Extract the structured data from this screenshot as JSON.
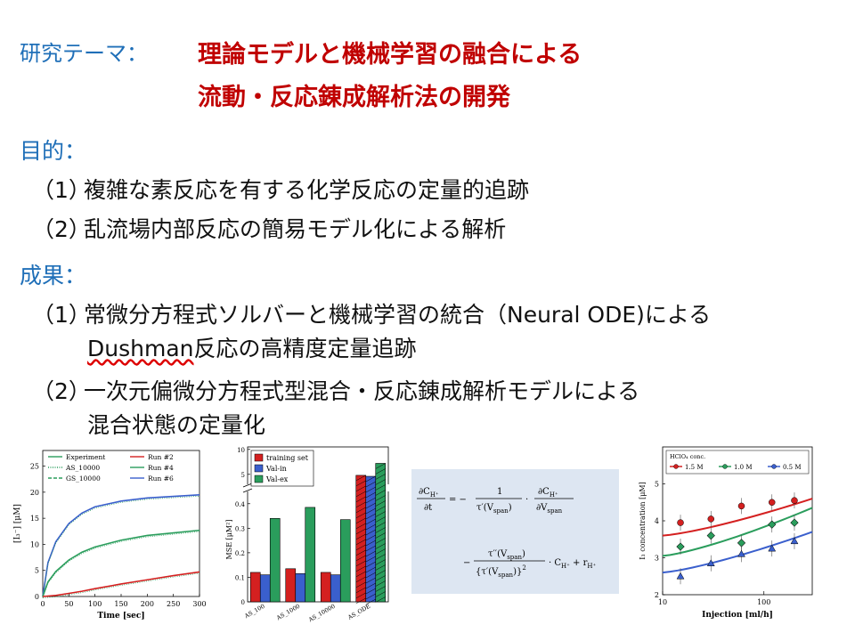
{
  "theme": {
    "label": "研究テーマ：",
    "title_line1": "理論モデルと機械学習の融合による",
    "title_line2": "流動・反応錬成解析法の開発"
  },
  "purpose": {
    "heading": "目的：",
    "items": [
      {
        "num": "（1）",
        "text": "複雑な素反応を有する化学反応の定量的追跡"
      },
      {
        "num": "（2）",
        "text": "乱流場内部反応の簡易モデル化による解析"
      }
    ]
  },
  "results": {
    "heading": "成果：",
    "items": [
      {
        "num": "（1）",
        "line1": "常微分方程式ソルバーと機械学習の統合（Neural ODE)による",
        "line2_u": "Dushman",
        "line2_rest": "反応の高精度定量追跡"
      },
      {
        "num": "（2）",
        "line1": "一次元偏微分方程式型混合・反応錬成解析モデルによる",
        "line2": "混合状態の定量化"
      }
    ]
  },
  "equation": {
    "lhs_num": "∂C",
    "lhs_sub": "H⁺",
    "lhs_den": "∂t",
    "eq1": "= −",
    "frac1_num": "1",
    "frac1_den": "τ′(V",
    "frac1_den_sub": "span",
    "frac1_den_end": ")",
    "dot": "·",
    "frac2_num": "∂C",
    "frac2_num_sub": "H⁺",
    "frac2_den": "∂V",
    "frac2_den_sub": "span",
    "minus": "−",
    "frac3_num": "τ′′(V",
    "frac3_num_sub": "span",
    "frac3_num_end": ")",
    "frac3_den": "{τ′(V",
    "frac3_den_sub": "span",
    "frac3_den_end": ")}",
    "frac3_den_sup": "2",
    "tail": "· C",
    "tail_sub": "H⁺",
    "tail_plus": " + r",
    "tail_sub2": "H⁺"
  },
  "chart_data": [
    {
      "type": "line",
      "xlabel": "Time [sec]",
      "ylabel": "[I₃⁻] [μM]",
      "xlim": [
        0,
        300
      ],
      "ylim": [
        0,
        28
      ],
      "xticks": [
        "0",
        "50",
        "100",
        "150",
        "200",
        "250",
        "300"
      ],
      "yticks": [
        "0",
        "5",
        "10",
        "15",
        "20",
        "25"
      ],
      "legend": [
        "Experiment",
        "AS_10000",
        "GS_10000",
        "Run #2",
        "Run #4",
        "Run #6"
      ],
      "series": [
        {
          "name": "Run #6",
          "color": "#3a5fcd",
          "x": [
            0,
            10,
            25,
            50,
            75,
            100,
            150,
            200,
            250,
            300
          ],
          "values": [
            0,
            6.5,
            10.5,
            14,
            16,
            17.2,
            18.3,
            18.9,
            19.2,
            19.5
          ]
        },
        {
          "name": "Run #4",
          "color": "#2a9d5c",
          "x": [
            0,
            10,
            25,
            50,
            75,
            100,
            150,
            200,
            250,
            300
          ],
          "values": [
            0,
            2.8,
            4.8,
            7,
            8.5,
            9.5,
            10.8,
            11.7,
            12.2,
            12.7
          ]
        },
        {
          "name": "Run #2",
          "color": "#d42020",
          "x": [
            0,
            25,
            50,
            75,
            100,
            150,
            200,
            250,
            300
          ],
          "values": [
            0,
            0.2,
            0.6,
            1.0,
            1.5,
            2.4,
            3.2,
            4.0,
            4.7
          ]
        }
      ]
    },
    {
      "type": "bar",
      "ylabel": "MSE [μM²]",
      "categories": [
        "AS_100",
        "AS_1000",
        "AS_10000",
        "AS_ODE"
      ],
      "legend": [
        "training set",
        "Val-in",
        "Val-ex"
      ],
      "yticks_lower": [
        "0",
        "0.1",
        "0.2",
        "0.3",
        "0.4"
      ],
      "yticks_upper": [
        "5",
        "10"
      ],
      "series": [
        {
          "name": "training set",
          "color": "#d42020",
          "values": [
            0.12,
            0.135,
            0.12,
            4.8
          ]
        },
        {
          "name": "Val-in",
          "color": "#3a5fcd",
          "values": [
            0.11,
            0.115,
            0.11,
            4.6
          ]
        },
        {
          "name": "Val-ex",
          "color": "#2a9d5c",
          "values": [
            0.34,
            0.385,
            0.335,
            7.2
          ]
        }
      ]
    },
    {
      "type": "scatter",
      "xlabel": "Injection [ml/h]",
      "ylabel": "I₃ concentration [μM]",
      "xscale": "log",
      "xlim": [
        10,
        300
      ],
      "ylim": [
        2,
        6
      ],
      "xticks": [
        "10",
        "100"
      ],
      "yticks": [
        "2",
        "3",
        "4",
        "5"
      ],
      "legend_title": "HClO₄ conc.",
      "legend": [
        "1.5 M",
        "1.0 M",
        "0.5 M"
      ],
      "series": [
        {
          "name": "1.5 M",
          "color": "#d42020",
          "x": [
            15,
            30,
            60,
            120,
            200
          ],
          "values": [
            3.95,
            4.05,
            4.4,
            4.5,
            4.55
          ]
        },
        {
          "name": "1.0 M",
          "color": "#2a9d5c",
          "x": [
            15,
            30,
            60,
            120,
            200
          ],
          "values": [
            3.3,
            3.6,
            3.4,
            3.9,
            3.95
          ]
        },
        {
          "name": "0.5 M",
          "color": "#3a5fcd",
          "x": [
            15,
            30,
            60,
            120,
            200
          ],
          "values": [
            2.5,
            2.85,
            3.1,
            3.25,
            3.45
          ]
        }
      ]
    }
  ]
}
